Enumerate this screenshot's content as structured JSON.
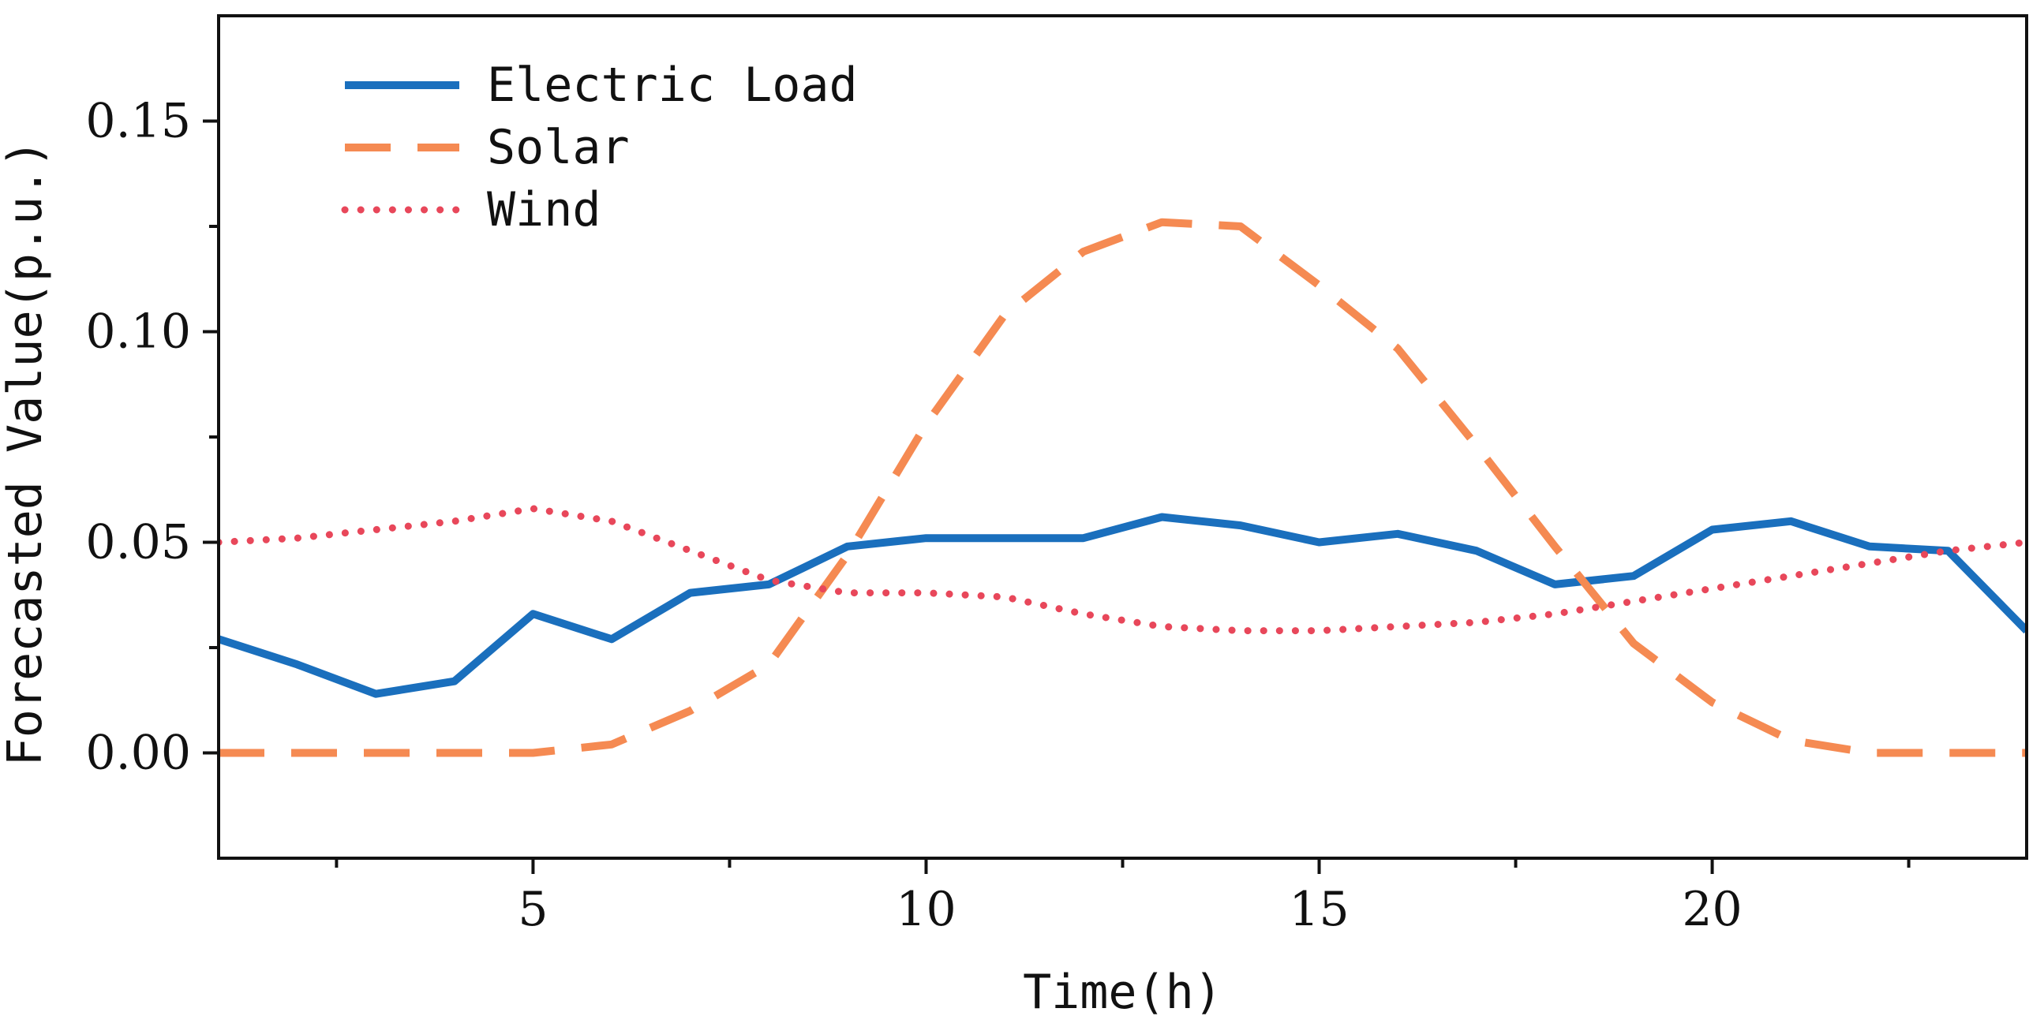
{
  "chart_data": {
    "type": "line",
    "title": "",
    "xlabel": "Time(h)",
    "ylabel": "Forecasted Value(p.u.)",
    "xlim": [
      1,
      24
    ],
    "ylim": [
      -0.025,
      0.175
    ],
    "xticks": [
      5,
      10,
      15,
      20
    ],
    "xtick_labels": [
      "5",
      "10",
      "15",
      "20"
    ],
    "x_minor_ticks": [
      2.5,
      7.5,
      12.5,
      17.5,
      22.5
    ],
    "yticks": [
      0.0,
      0.05,
      0.1,
      0.15
    ],
    "ytick_labels": [
      "0.00",
      "0.05",
      "0.10",
      "0.15"
    ],
    "y_minor_ticks": [
      0.025,
      0.075,
      0.125
    ],
    "legend_position": "top-left",
    "grid": false,
    "x": [
      1,
      2,
      3,
      4,
      5,
      6,
      7,
      8,
      9,
      10,
      11,
      12,
      13,
      14,
      15,
      16,
      17,
      18,
      19,
      20,
      21,
      22,
      23,
      24
    ],
    "series": [
      {
        "name": "Electric Load",
        "color": "#1a6fbd",
        "style": "solid",
        "values": [
          0.027,
          0.021,
          0.014,
          0.017,
          0.033,
          0.027,
          0.038,
          0.04,
          0.049,
          0.051,
          0.051,
          0.051,
          0.056,
          0.054,
          0.05,
          0.052,
          0.048,
          0.04,
          0.042,
          0.053,
          0.055,
          0.049,
          0.048,
          0.029
        ]
      },
      {
        "name": "Solar",
        "color": "#f58a52",
        "style": "dashed",
        "values": [
          0.0,
          0.0,
          0.0,
          0.0,
          0.0,
          0.002,
          0.01,
          0.021,
          0.047,
          0.078,
          0.104,
          0.119,
          0.126,
          0.125,
          0.111,
          0.096,
          0.073,
          0.049,
          0.026,
          0.012,
          0.003,
          0.0,
          0.0,
          0.0
        ]
      },
      {
        "name": "Wind",
        "color": "#e8475a",
        "style": "dotted",
        "values": [
          0.05,
          0.051,
          0.053,
          0.055,
          0.058,
          0.055,
          0.048,
          0.041,
          0.038,
          0.038,
          0.037,
          0.033,
          0.03,
          0.029,
          0.029,
          0.03,
          0.031,
          0.033,
          0.036,
          0.039,
          0.042,
          0.045,
          0.048,
          0.05
        ]
      }
    ]
  }
}
